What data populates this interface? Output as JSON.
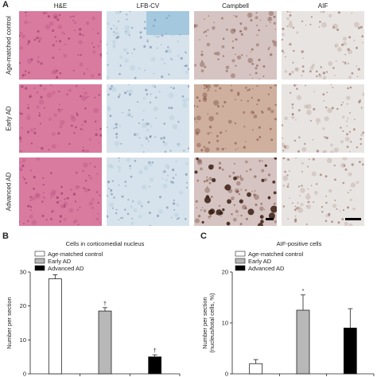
{
  "panels": {
    "a": "A",
    "b": "B",
    "c": "C"
  },
  "columns": [
    "H&E",
    "LFB-CV",
    "Campbell",
    "AIF"
  ],
  "rows": [
    "Age-matched control",
    "Early AD",
    "Advanced AD"
  ],
  "colors": {
    "he": "#d97a9f",
    "lfb": "#d6e3ec",
    "campbell": "#d6c4c2",
    "aif": "#e8e4e2"
  },
  "chart_data": [
    {
      "type": "bar",
      "title": "Cells in corticomedial nucleus",
      "ylabel": "Number per section",
      "ylim": [
        0,
        30
      ],
      "yticks": [
        0,
        10,
        20,
        30
      ],
      "legend": [
        "Age-matched control",
        "Early AD",
        "Advanced AD"
      ],
      "legend_position": "top-left",
      "categories": [
        "Age-matched control",
        "Early AD",
        "Advanced AD"
      ],
      "values": [
        28,
        18.5,
        5
      ],
      "errors": [
        1.2,
        1,
        0.6
      ],
      "annotations": [
        "",
        "†",
        "†"
      ],
      "colors": [
        "#ffffff",
        "#b8b8b8",
        "#000000"
      ]
    },
    {
      "type": "bar",
      "title": "AIF-positive cells",
      "ylabel": "Number per section",
      "ylabel2": "(nucleus/total cells, %)",
      "ylim": [
        0,
        20
      ],
      "yticks": [
        0,
        10,
        20
      ],
      "legend": [
        "Age-matched control",
        "Early AD",
        "Advanced AD"
      ],
      "legend_position": "top-left",
      "categories": [
        "Age-matched control",
        "Early AD",
        "Advanced AD"
      ],
      "values": [
        2,
        12.5,
        9
      ],
      "errors": [
        0.8,
        3,
        3.8
      ],
      "annotations": [
        "",
        "*",
        ""
      ],
      "colors": [
        "#ffffff",
        "#b8b8b8",
        "#000000"
      ]
    }
  ]
}
